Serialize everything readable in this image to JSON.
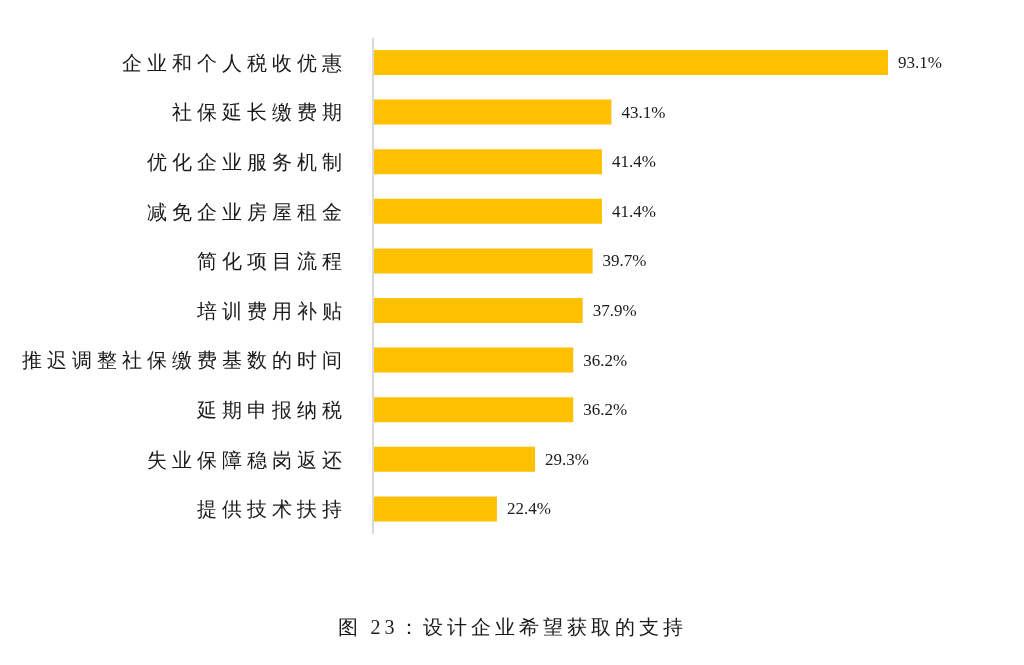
{
  "chart_data": {
    "type": "bar",
    "orientation": "horizontal",
    "title": "图 23：设计企业希望获取的支持",
    "categories": [
      "企业和个人税收优惠",
      "社保延长缴费期",
      "优化企业服务机制",
      "减免企业房屋租金",
      "简化项目流程",
      "培训费用补贴",
      "推迟调整社保缴费基数的时间",
      "延期申报纳税",
      "失业保障稳岗返还",
      "提供技术扶持"
    ],
    "values": [
      93.1,
      43.1,
      41.4,
      41.4,
      39.7,
      37.9,
      36.2,
      36.2,
      29.3,
      22.4
    ],
    "value_labels": [
      "93.1%",
      "43.1%",
      "41.4%",
      "41.4%",
      "39.7%",
      "37.9%",
      "36.2%",
      "36.2%",
      "29.3%",
      "22.4%"
    ],
    "color": "#ffc000"
  }
}
